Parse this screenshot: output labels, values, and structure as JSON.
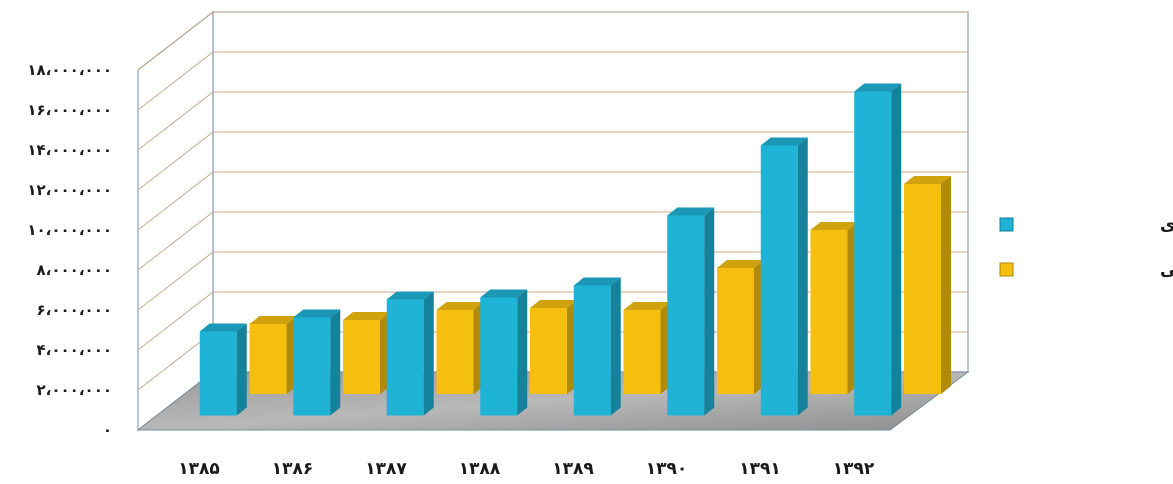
{
  "chart_data": {
    "type": "bar",
    "title": "",
    "xlabel": "",
    "ylabel": "",
    "categories": [
      "۱۳۸۵",
      "۱۳۸۶",
      "۱۳۸۷",
      "۱۳۸۸",
      "۱۳۸۹",
      "۱۳۹۰",
      "۱۳۹۱",
      "۱۳۹۲"
    ],
    "series": [
      {
        "name": "حق بیمه تولیدی",
        "color": "#1fb3d6",
        "values": [
          4200000,
          4900000,
          5800000,
          5900000,
          6500000,
          10000000,
          13500000,
          16200000
        ]
      },
      {
        "name": "خسارت پرداختی",
        "color": "#f5bf0f",
        "values": [
          3500000,
          3700000,
          4200000,
          4300000,
          4200000,
          6300000,
          8200000,
          10500000
        ]
      }
    ],
    "yticks": [
      {
        "value": 0,
        "label": "۰"
      },
      {
        "value": 2000000,
        "label": "۲،۰۰۰،۰۰۰"
      },
      {
        "value": 4000000,
        "label": "۴،۰۰۰،۰۰۰"
      },
      {
        "value": 6000000,
        "label": "۶،۰۰۰،۰۰۰"
      },
      {
        "value": 8000000,
        "label": "۸،۰۰۰،۰۰۰"
      },
      {
        "value": 10000000,
        "label": "۱۰،۰۰۰،۰۰۰"
      },
      {
        "value": 12000000,
        "label": "۱۲،۰۰۰،۰۰۰"
      },
      {
        "value": 14000000,
        "label": "۱۴،۰۰۰،۰۰۰"
      },
      {
        "value": 16000000,
        "label": "۱۶،۰۰۰،۰۰۰"
      },
      {
        "value": 18000000,
        "label": "۱۸،۰۰۰،۰۰۰"
      }
    ],
    "ylim": [
      0,
      18000000
    ],
    "grid": true,
    "legend_position": "right"
  }
}
